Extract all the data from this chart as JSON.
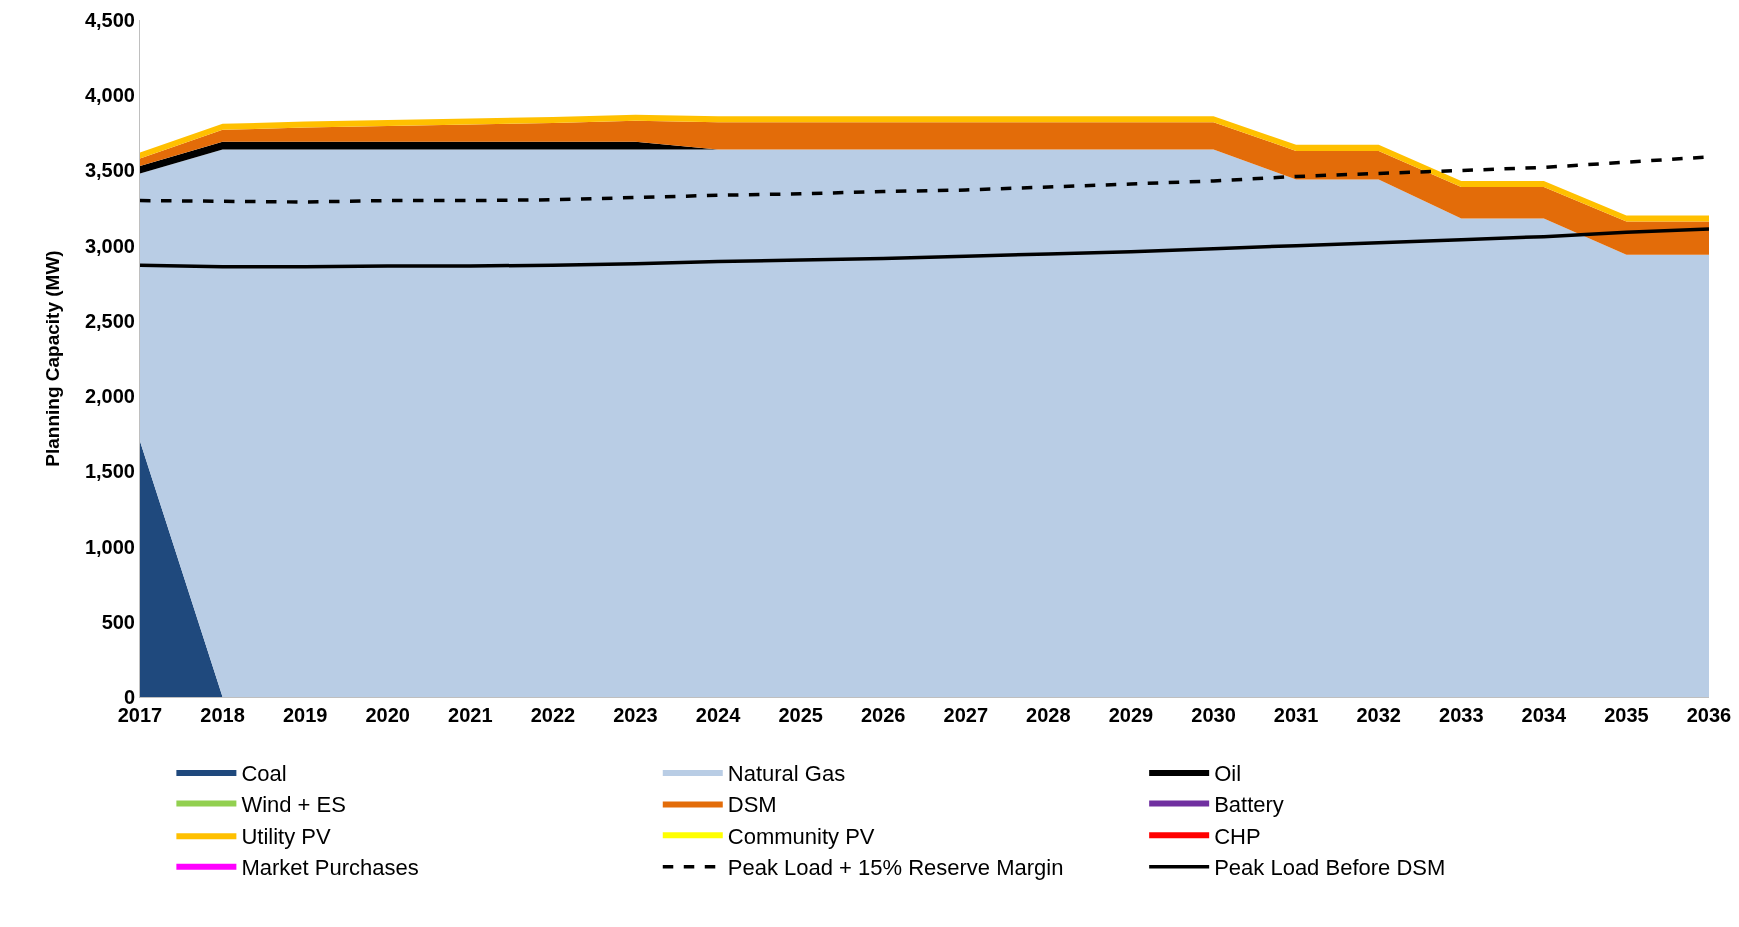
{
  "chart_data": {
    "type": "area",
    "stacked": true,
    "ylabel": "Planning Capacity (MW)",
    "categories": [
      "2017",
      "2018",
      "2019",
      "2020",
      "2021",
      "2022",
      "2023",
      "2024",
      "2025",
      "2026",
      "2027",
      "2028",
      "2029",
      "2030",
      "2031",
      "2032",
      "2033",
      "2034",
      "2035",
      "2036"
    ],
    "ylim": [
      0,
      4500
    ],
    "yticks": [
      0,
      500,
      {
        "value": 1000,
        "label": "1,000"
      },
      {
        "value": 1500,
        "label": "1,500"
      },
      {
        "value": 2000,
        "label": "2,000"
      },
      {
        "value": 2500,
        "label": "2,500"
      },
      {
        "value": 3000,
        "label": "3,000"
      },
      {
        "value": 3500,
        "label": "3,500"
      },
      {
        "value": 4000,
        "label": "4,000"
      },
      {
        "value": 4500,
        "label": "4,500"
      }
    ],
    "grid": false,
    "legend": "bottom",
    "series": [
      {
        "name": "Coal",
        "color": "#1f497d",
        "values": [
          1700,
          0,
          0,
          0,
          0,
          0,
          0,
          0,
          0,
          0,
          0,
          0,
          0,
          0,
          0,
          0,
          0,
          0,
          0,
          0
        ]
      },
      {
        "name": "Natural Gas",
        "color": "#b9cde5",
        "values": [
          1780,
          3640,
          3640,
          3640,
          3640,
          3640,
          3640,
          3640,
          3640,
          3640,
          3640,
          3640,
          3640,
          3640,
          3440,
          3440,
          3180,
          3180,
          2940,
          2940
        ]
      },
      {
        "name": "Oil",
        "color": "#000000",
        "values": [
          50,
          50,
          50,
          50,
          50,
          50,
          50,
          0,
          0,
          0,
          0,
          0,
          0,
          0,
          0,
          0,
          0,
          0,
          0,
          0
        ]
      },
      {
        "name": "Wind + ES",
        "color": "#92d050",
        "values": [
          null,
          null,
          null,
          null,
          null,
          null,
          null,
          null,
          null,
          null,
          null,
          null,
          null,
          null,
          null,
          null,
          null,
          null,
          null,
          null
        ]
      },
      {
        "name": "DSM",
        "color": "#e36c09",
        "values": [
          50,
          80,
          95,
          105,
          115,
          125,
          140,
          180,
          180,
          180,
          180,
          180,
          180,
          180,
          190,
          190,
          210,
          210,
          220,
          220
        ]
      },
      {
        "name": "Battery",
        "color": "#7030a0",
        "values": [
          null,
          null,
          null,
          null,
          null,
          null,
          null,
          null,
          null,
          null,
          null,
          null,
          null,
          null,
          null,
          null,
          null,
          null,
          null,
          null
        ]
      },
      {
        "name": "Utility PV",
        "color": "#ffc000",
        "values": [
          40,
          40,
          40,
          40,
          40,
          40,
          40,
          40,
          40,
          40,
          40,
          40,
          40,
          40,
          40,
          40,
          40,
          40,
          40,
          40
        ]
      },
      {
        "name": "Community PV",
        "color": "#ffff00",
        "values": [
          null,
          null,
          null,
          null,
          null,
          null,
          null,
          null,
          null,
          null,
          null,
          null,
          null,
          null,
          null,
          null,
          null,
          null,
          null,
          null
        ]
      },
      {
        "name": "CHP",
        "color": "#ff0000",
        "values": [
          null,
          null,
          null,
          null,
          null,
          null,
          null,
          null,
          null,
          null,
          null,
          null,
          null,
          null,
          null,
          null,
          null,
          null,
          null,
          null
        ]
      },
      {
        "name": "Market Purchases",
        "color": "#ff00ff",
        "values": [
          null,
          null,
          null,
          null,
          null,
          null,
          null,
          null,
          null,
          null,
          null,
          null,
          null,
          null,
          null,
          null,
          null,
          null,
          null,
          null
        ]
      },
      {
        "name": "Peak Load + 15% Reserve Margin",
        "type": "line",
        "line_style": "dashed",
        "color": "#000000",
        "values": [
          3300,
          3295,
          3290,
          3300,
          3300,
          3305,
          3320,
          3335,
          3345,
          3360,
          3370,
          3390,
          3410,
          3430,
          3460,
          3480,
          3500,
          3520,
          3555,
          3590
        ]
      },
      {
        "name": "Peak Load Before DSM",
        "type": "line",
        "line_style": "solid",
        "color": "#000000",
        "values": [
          2870,
          2860,
          2860,
          2865,
          2865,
          2870,
          2880,
          2895,
          2905,
          2915,
          2930,
          2945,
          2960,
          2980,
          3000,
          3020,
          3040,
          3060,
          3090,
          3110
        ]
      }
    ]
  }
}
